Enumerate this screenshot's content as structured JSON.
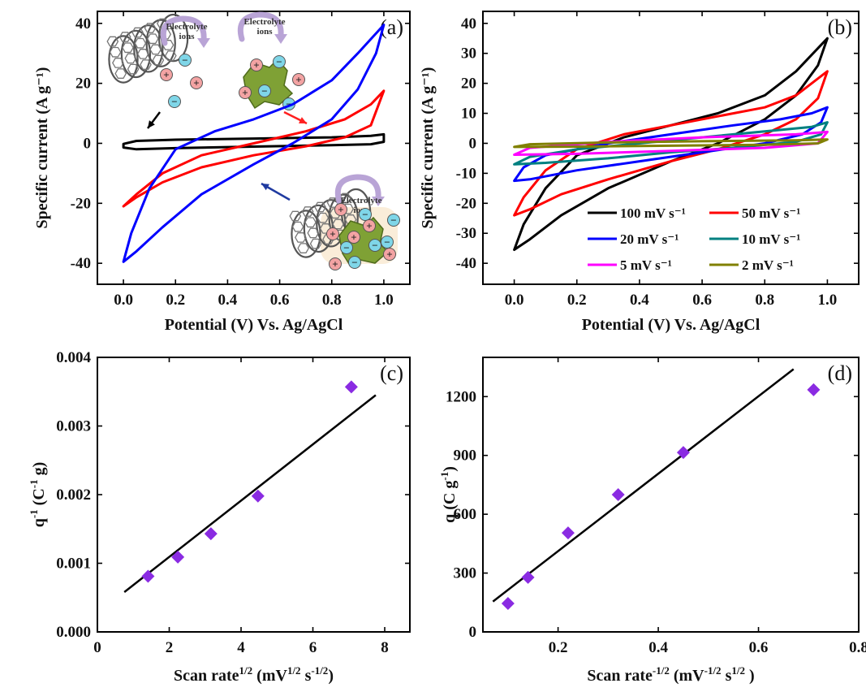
{
  "panels": [
    {
      "id": "a",
      "label": "(a)",
      "type": "line",
      "xlim": [
        -0.1,
        1.1
      ],
      "ylim": [
        -47,
        44
      ],
      "xticks": [
        0.0,
        0.2,
        0.4,
        0.6,
        0.8,
        1.0
      ],
      "xtick_labels": [
        "0.0",
        "0.2",
        "0.4",
        "0.6",
        "0.8",
        "1.0"
      ],
      "yticks": [
        -40,
        -20,
        0,
        20,
        40
      ],
      "ytick_labels": [
        "-40",
        "-20",
        "0",
        "20",
        "40"
      ],
      "xlabel": "Potential (V) Vs. Ag/AgCl",
      "ylabel": "Specific current (A g⁻¹)",
      "cv_series": [
        {
          "color": "#000000",
          "upper": [
            [
              0.0,
              -0.2
            ],
            [
              0.05,
              0.8
            ],
            [
              0.2,
              1.2
            ],
            [
              0.5,
              1.6
            ],
            [
              0.8,
              2.0
            ],
            [
              0.95,
              2.5
            ],
            [
              1.0,
              3.0
            ]
          ],
          "lower": [
            [
              0.0,
              -1.4
            ],
            [
              0.05,
              -2.0
            ],
            [
              0.2,
              -1.6
            ],
            [
              0.5,
              -1.1
            ],
            [
              0.8,
              -0.6
            ],
            [
              0.95,
              -0.3
            ],
            [
              1.0,
              0.5
            ]
          ]
        },
        {
          "color": "#ff0000",
          "upper": [
            [
              0.0,
              -21
            ],
            [
              0.05,
              -17
            ],
            [
              0.15,
              -10
            ],
            [
              0.3,
              -4
            ],
            [
              0.5,
              0
            ],
            [
              0.7,
              4
            ],
            [
              0.85,
              8
            ],
            [
              0.95,
              13
            ],
            [
              1.0,
              17.5
            ]
          ],
          "lower": [
            [
              0.0,
              -21
            ],
            [
              0.05,
              -18
            ],
            [
              0.15,
              -13
            ],
            [
              0.3,
              -8
            ],
            [
              0.5,
              -4
            ],
            [
              0.7,
              -1
            ],
            [
              0.85,
              2
            ],
            [
              0.95,
              6
            ],
            [
              1.0,
              17.5
            ]
          ]
        },
        {
          "color": "#0000ff",
          "upper": [
            [
              0.0,
              -39.5
            ],
            [
              0.03,
              -30
            ],
            [
              0.1,
              -15
            ],
            [
              0.2,
              -2
            ],
            [
              0.35,
              4
            ],
            [
              0.5,
              8
            ],
            [
              0.65,
              13
            ],
            [
              0.8,
              21
            ],
            [
              0.9,
              30
            ],
            [
              1.0,
              39.5
            ]
          ],
          "lower": [
            [
              0.0,
              -39.5
            ],
            [
              0.05,
              -36
            ],
            [
              0.15,
              -28
            ],
            [
              0.3,
              -17
            ],
            [
              0.5,
              -7
            ],
            [
              0.65,
              0
            ],
            [
              0.8,
              8
            ],
            [
              0.9,
              18
            ],
            [
              0.97,
              30
            ],
            [
              1.0,
              39.5
            ]
          ]
        }
      ],
      "inset_texts": [
        "Electrolyte",
        "ions",
        "Electrolyte",
        "ions",
        "Electrolyte",
        "ions"
      ]
    },
    {
      "id": "b",
      "label": "(b)",
      "type": "line",
      "xlim": [
        -0.1,
        1.1
      ],
      "ylim": [
        -47,
        44
      ],
      "xticks": [
        0.0,
        0.2,
        0.4,
        0.6,
        0.8,
        1.0
      ],
      "xtick_labels": [
        "0.0",
        "0.2",
        "0.4",
        "0.6",
        "0.8",
        "1.0"
      ],
      "yticks": [
        -40,
        -30,
        -20,
        -10,
        0,
        10,
        20,
        30,
        40
      ],
      "ytick_labels": [
        "-40",
        "-30",
        "-20",
        "-10",
        "0",
        "10",
        "20",
        "30",
        "40"
      ],
      "xlabel": "Potential (V) Vs. Ag/AgCl",
      "ylabel": "Specific current (A g⁻¹)",
      "cv_series": [
        {
          "name": "100 mV s⁻¹",
          "color": "#000000",
          "upper": [
            [
              0.0,
              -35.5
            ],
            [
              0.03,
              -27
            ],
            [
              0.1,
              -15
            ],
            [
              0.2,
              -4
            ],
            [
              0.35,
              2
            ],
            [
              0.5,
              6
            ],
            [
              0.65,
              10
            ],
            [
              0.8,
              16
            ],
            [
              0.9,
              24
            ],
            [
              1.0,
              35
            ]
          ],
          "lower": [
            [
              0.0,
              -35.5
            ],
            [
              0.05,
              -32
            ],
            [
              0.15,
              -24
            ],
            [
              0.3,
              -15
            ],
            [
              0.5,
              -6
            ],
            [
              0.65,
              0
            ],
            [
              0.8,
              8
            ],
            [
              0.9,
              16
            ],
            [
              0.97,
              26
            ],
            [
              1.0,
              35
            ]
          ]
        },
        {
          "name": "50 mV s⁻¹",
          "color": "#ff0000",
          "upper": [
            [
              0.0,
              -24
            ],
            [
              0.03,
              -18
            ],
            [
              0.1,
              -9
            ],
            [
              0.2,
              -2
            ],
            [
              0.35,
              3
            ],
            [
              0.5,
              6
            ],
            [
              0.65,
              9
            ],
            [
              0.8,
              12
            ],
            [
              0.9,
              16
            ],
            [
              1.0,
              24
            ]
          ],
          "lower": [
            [
              0.0,
              -24
            ],
            [
              0.05,
              -22
            ],
            [
              0.15,
              -17
            ],
            [
              0.3,
              -12
            ],
            [
              0.5,
              -6
            ],
            [
              0.65,
              -2
            ],
            [
              0.8,
              3
            ],
            [
              0.9,
              8
            ],
            [
              0.97,
              15
            ],
            [
              1.0,
              24
            ]
          ]
        },
        {
          "name": "20 mV s⁻¹",
          "color": "#0000ff",
          "upper": [
            [
              0.0,
              -12.5
            ],
            [
              0.03,
              -8
            ],
            [
              0.1,
              -4
            ],
            [
              0.3,
              0
            ],
            [
              0.5,
              3
            ],
            [
              0.7,
              6
            ],
            [
              0.85,
              8
            ],
            [
              0.95,
              10
            ],
            [
              1.0,
              12
            ]
          ],
          "lower": [
            [
              0.0,
              -12.5
            ],
            [
              0.05,
              -12
            ],
            [
              0.2,
              -9
            ],
            [
              0.4,
              -6
            ],
            [
              0.6,
              -3
            ],
            [
              0.8,
              0
            ],
            [
              0.92,
              3
            ],
            [
              0.98,
              7
            ],
            [
              1.0,
              12
            ]
          ]
        },
        {
          "name": "10 mV s⁻¹",
          "color": "#008080",
          "upper": [
            [
              0.0,
              -7
            ],
            [
              0.05,
              -4.5
            ],
            [
              0.2,
              -2
            ],
            [
              0.4,
              0
            ],
            [
              0.6,
              2
            ],
            [
              0.8,
              4
            ],
            [
              0.95,
              5.5
            ],
            [
              1.0,
              7
            ]
          ],
          "lower": [
            [
              0.0,
              -7
            ],
            [
              0.1,
              -6.5
            ],
            [
              0.3,
              -5
            ],
            [
              0.5,
              -3
            ],
            [
              0.7,
              -1.5
            ],
            [
              0.9,
              0.5
            ],
            [
              0.98,
              3
            ],
            [
              1.0,
              7
            ]
          ]
        },
        {
          "name": "5 mV s⁻¹",
          "color": "#ff00ff",
          "upper": [
            [
              0.0,
              -3.8
            ],
            [
              0.05,
              -1.5
            ],
            [
              0.3,
              0.5
            ],
            [
              0.6,
              2
            ],
            [
              0.9,
              3
            ],
            [
              1.0,
              3.8
            ]
          ],
          "lower": [
            [
              0.0,
              -3.8
            ],
            [
              0.2,
              -3.5
            ],
            [
              0.5,
              -2.5
            ],
            [
              0.8,
              -1.5
            ],
            [
              0.97,
              0
            ],
            [
              1.0,
              3.8
            ]
          ]
        },
        {
          "name": "2 mV s⁻¹",
          "color": "#808000",
          "upper": [
            [
              0.0,
              -1.2
            ],
            [
              0.05,
              -0.3
            ],
            [
              0.3,
              0.3
            ],
            [
              0.6,
              0.7
            ],
            [
              0.9,
              1.0
            ],
            [
              1.0,
              1.3
            ]
          ],
          "lower": [
            [
              0.0,
              -1.2
            ],
            [
              0.2,
              -1.1
            ],
            [
              0.5,
              -0.8
            ],
            [
              0.8,
              -0.5
            ],
            [
              0.97,
              0
            ],
            [
              1.0,
              1.3
            ]
          ]
        }
      ]
    },
    {
      "id": "c",
      "label": "(c)",
      "type": "scatter",
      "xlim": [
        0,
        8.7
      ],
      "ylim": [
        0.0,
        0.004
      ],
      "xticks": [
        0,
        2,
        4,
        6,
        8
      ],
      "xtick_labels": [
        "0",
        "2",
        "4",
        "6",
        "8"
      ],
      "yticks": [
        0.0,
        0.001,
        0.002,
        0.003,
        0.004
      ],
      "ytick_labels": [
        "0.000",
        "0.001",
        "0.002",
        "0.003",
        "0.004"
      ],
      "xlabel_base": "Scan rate",
      "xlabel_sup1": "1/2",
      "xlabel_mid": " (mV",
      "xlabel_sup2": "1/2",
      "xlabel_mid2": " s",
      "xlabel_sup3": "-1/2",
      "xlabel_end": ")",
      "ylabel_base": "q",
      "ylabel_sup1": "-1",
      "ylabel_mid": " (C",
      "ylabel_sup2": "-1",
      "ylabel_end": " g)",
      "points": [
        [
          1.41,
          0.00081
        ],
        [
          2.24,
          0.00109
        ],
        [
          3.16,
          0.00143
        ],
        [
          4.47,
          0.00198
        ],
        [
          7.07,
          0.00357
        ]
      ],
      "fit": [
        [
          0.75,
          0.00058
        ],
        [
          7.75,
          0.00345
        ]
      ],
      "marker_color": "#8a2be2"
    },
    {
      "id": "d",
      "label": "(d)",
      "type": "scatter",
      "xlim": [
        0.05,
        0.8
      ],
      "ylim": [
        0,
        1400
      ],
      "xticks": [
        0.2,
        0.4,
        0.6,
        0.8
      ],
      "xtick_labels": [
        "0.2",
        "0.4",
        "0.6",
        "0.8"
      ],
      "yticks": [
        0,
        300,
        600,
        900,
        1200
      ],
      "ytick_labels": [
        "0",
        "300",
        "600",
        "900",
        "1200"
      ],
      "xlabel_base": "Scan rate",
      "xlabel_sup1": "-1/2",
      "xlabel_mid": " (mV",
      "xlabel_sup2": "-1/2",
      "xlabel_mid2": " s",
      "xlabel_sup3": "1/2",
      "xlabel_end": " )",
      "ylabel_base": "q (C g",
      "ylabel_sup1": "-1",
      "ylabel_end": ")",
      "points": [
        [
          0.1,
          145
        ],
        [
          0.14,
          278
        ],
        [
          0.22,
          505
        ],
        [
          0.32,
          700
        ],
        [
          0.45,
          915
        ],
        [
          0.71,
          1235
        ]
      ],
      "fit": [
        [
          0.07,
          155
        ],
        [
          0.67,
          1340
        ]
      ],
      "marker_color": "#8a2be2"
    }
  ]
}
